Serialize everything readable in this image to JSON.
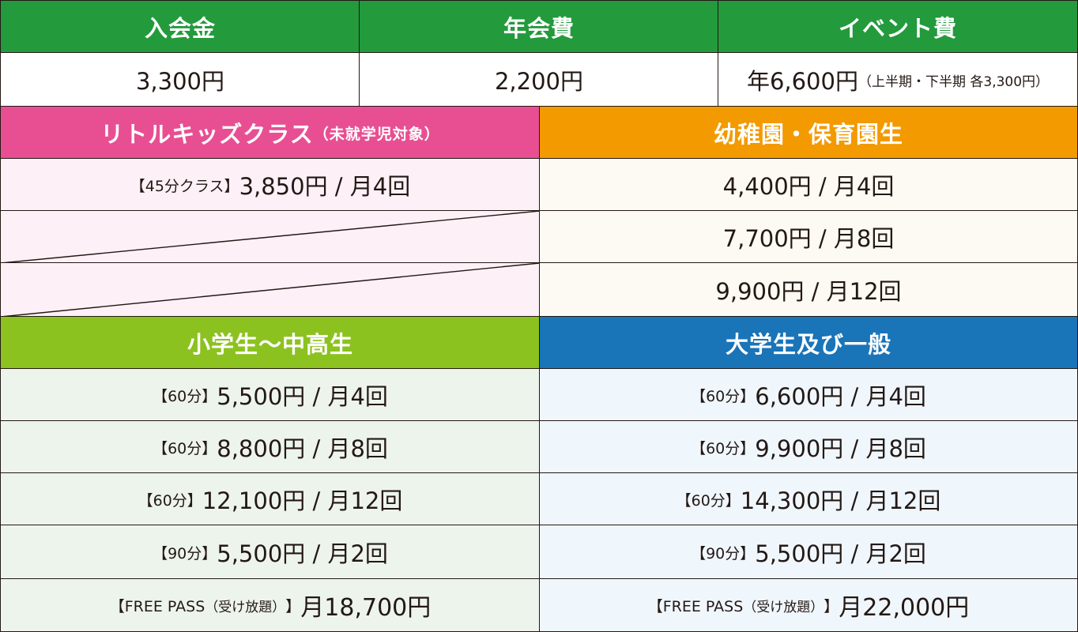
{
  "fees": {
    "headers": [
      "入会金",
      "年会費",
      "イベント費"
    ],
    "values": [
      "3,300円",
      "2,200円",
      "年6,600円"
    ],
    "event_note": "（上半期・下半期 各3,300円）"
  },
  "little_kids": {
    "title": "リトルキッズクラス",
    "title_note": "（未就学児対象）",
    "row1_label": "【45分クラス】",
    "row1_value": "3,850円 / 月4回"
  },
  "preschool": {
    "title": "幼稚園・保育園生",
    "rows": [
      "4,400円 / 月4回",
      "7,700円 / 月8回",
      "9,900円 / 月12回"
    ]
  },
  "students": {
    "title": "小学生〜中高生",
    "rows": [
      {
        "label": "【60分】",
        "value": "5,500円 / 月4回"
      },
      {
        "label": "【60分】",
        "value": "8,800円 / 月8回"
      },
      {
        "label": "【60分】",
        "value": "12,100円 / 月12回"
      },
      {
        "label": "【90分】",
        "value": "5,500円 / 月2回"
      }
    ],
    "pass_label": "【FREE PASS",
    "pass_note": "（受け放題）",
    "pass_close": "】",
    "pass_value": "月18,700円"
  },
  "adults": {
    "title": "大学生及び一般",
    "rows": [
      {
        "label": "【60分】",
        "value": "6,600円 / 月4回"
      },
      {
        "label": "【60分】",
        "value": "9,900円 / 月8回"
      },
      {
        "label": "【60分】",
        "value": "14,300円 / 月12回"
      },
      {
        "label": "【90分】",
        "value": "5,500円 / 月2回"
      }
    ],
    "pass_label": "【FREE PASS",
    "pass_note": "（受け放題）",
    "pass_close": "】",
    "pass_value": "月22,000円"
  },
  "colors": {
    "green": "#239a3c",
    "pink": "#e84f92",
    "orange": "#f39a00",
    "lime": "#8cc21f",
    "blue": "#1a74b8"
  }
}
